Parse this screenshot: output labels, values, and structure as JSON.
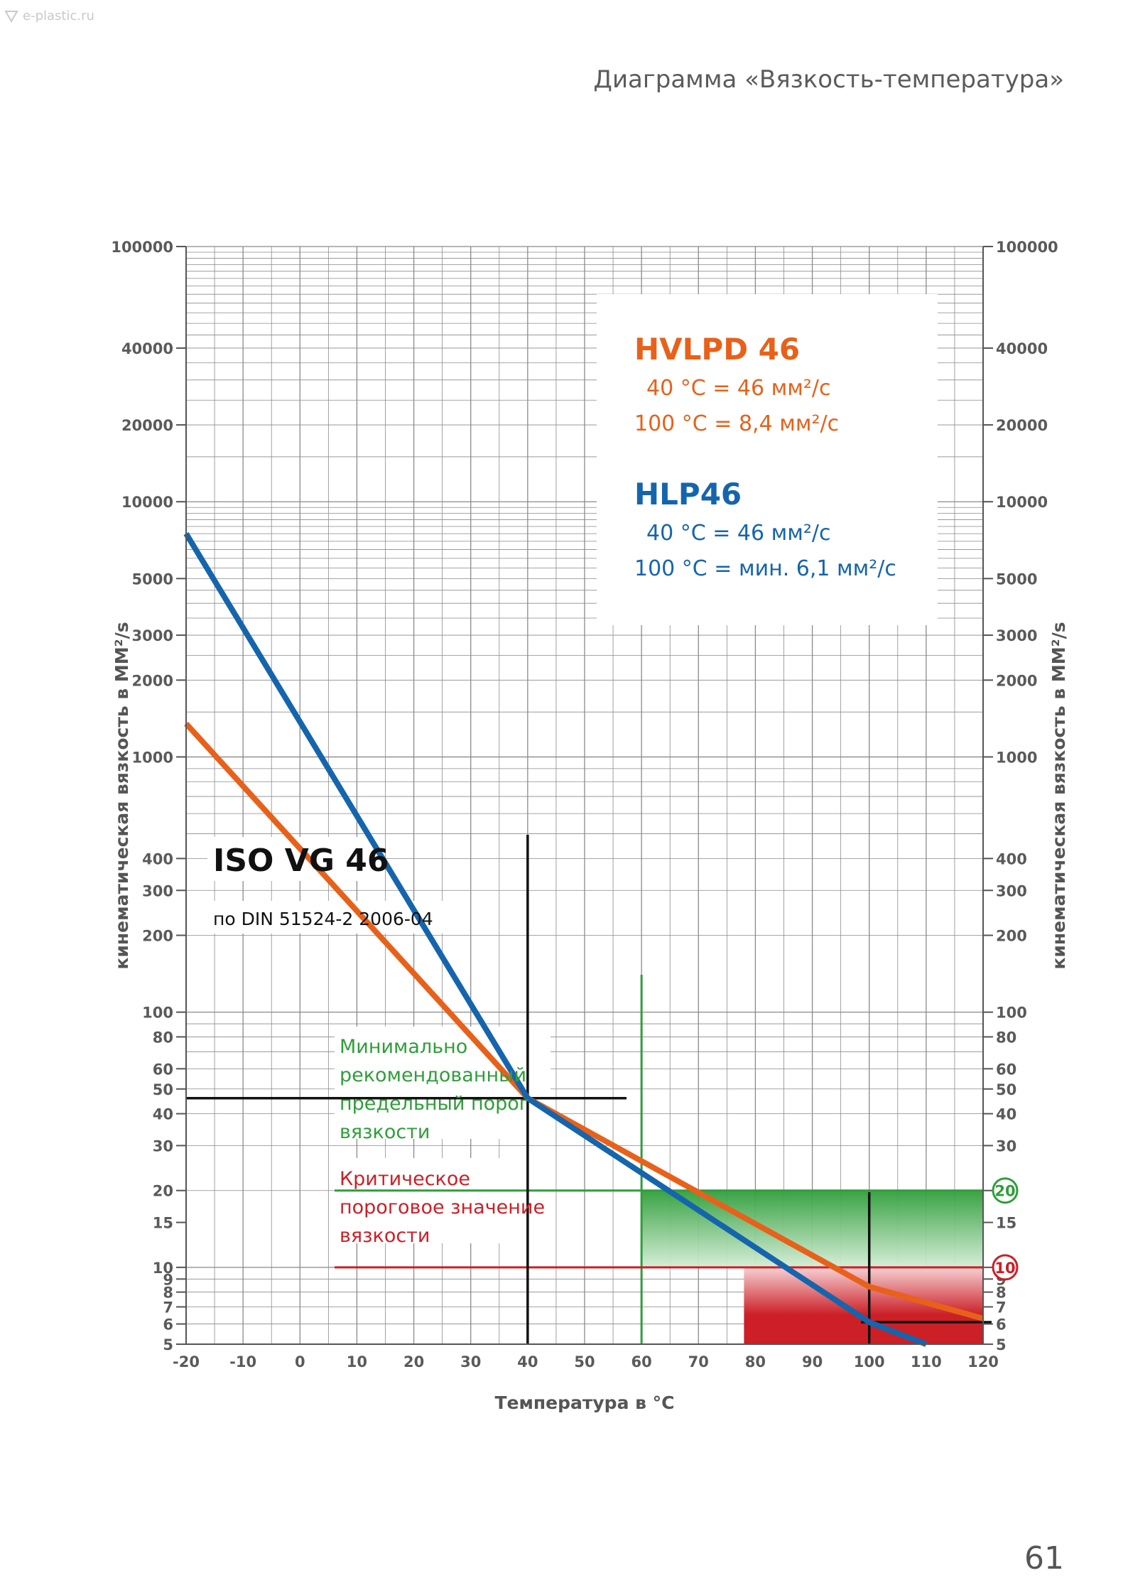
{
  "watermark": "e-plastic.ru",
  "page_header": "Диаграмма «Вязкость-температура»",
  "page_number": "61",
  "colors": {
    "hvlpd": "#e8611a",
    "hlp": "#1565ad",
    "green": "#2f9e3a",
    "red": "#cc1f26",
    "grid": "#8a8a8a",
    "black": "#111111"
  },
  "chart_data": {
    "type": "line",
    "title": "Диаграмма «Вязкость-температура»",
    "xlabel": "Температура в °C",
    "ylabel": "кинематическая вязкость в MM²/s",
    "xlim": [
      -20,
      120
    ],
    "ylim": [
      5,
      100000
    ],
    "yscale": "log",
    "x_ticks": [
      "-20",
      "-10",
      "0",
      "10",
      "20",
      "30",
      "40",
      "50",
      "60",
      "70",
      "80",
      "90",
      "100",
      "110",
      "120"
    ],
    "y_ticks": [
      {
        "v": 100000,
        "label": "100000"
      },
      {
        "v": 40000,
        "label": "40000"
      },
      {
        "v": 20000,
        "label": "20000"
      },
      {
        "v": 10000,
        "label": "10000"
      },
      {
        "v": 5000,
        "label": "5000"
      },
      {
        "v": 3000,
        "label": "3000"
      },
      {
        "v": 2000,
        "label": "2000"
      },
      {
        "v": 1000,
        "label": "1000"
      },
      {
        "v": 400,
        "label": "400"
      },
      {
        "v": 300,
        "label": "300"
      },
      {
        "v": 200,
        "label": "200"
      },
      {
        "v": 100,
        "label": "100"
      },
      {
        "v": 80,
        "label": "80"
      },
      {
        "v": 60,
        "label": "60"
      },
      {
        "v": 50,
        "label": "50"
      },
      {
        "v": 40,
        "label": "40"
      },
      {
        "v": 30,
        "label": "30"
      },
      {
        "v": 20,
        "label": "20"
      },
      {
        "v": 15,
        "label": "15"
      },
      {
        "v": 10,
        "label": "10"
      },
      {
        "v": 9,
        "label": "9"
      },
      {
        "v": 8,
        "label": "8"
      },
      {
        "v": 7,
        "label": "7"
      },
      {
        "v": 6,
        "label": "6"
      },
      {
        "v": 5,
        "label": "5"
      }
    ],
    "series": [
      {
        "name": "HVLPD 46",
        "color": "#e8611a",
        "points": [
          [
            -20,
            1350
          ],
          [
            40,
            46
          ],
          [
            100,
            8.4
          ],
          [
            120,
            6.3
          ]
        ]
      },
      {
        "name": "HLP46",
        "color": "#1565ad",
        "points": [
          [
            -20,
            7500
          ],
          [
            40,
            46
          ],
          [
            100,
            6.1
          ],
          [
            110,
            5
          ]
        ]
      }
    ],
    "thresholds": [
      {
        "value": 20,
        "label": "20",
        "color": "#2f9e3a",
        "from_x": 60
      },
      {
        "value": 10,
        "label": "10",
        "color": "#cc1f26",
        "from_x": 78
      }
    ],
    "legend": {
      "hvlpd_title": "HVLPD 46",
      "hvlpd_line1": "40 °C = 46 мм²/с",
      "hvlpd_line2": "100 °C = 8,4 мм²/с",
      "hlp_title": "HLP46",
      "hlp_line1": "40 °C = 46 мм²/с",
      "hlp_line2": "100 °C = мин. 6,1 мм²/с"
    },
    "annotations": {
      "iso_title": "ISO VG 46",
      "iso_sub": "по DIN 51524-2 2006-04",
      "green_lines": [
        "Минимально",
        "рекомендованный",
        "предельный порог",
        "вязкости"
      ],
      "red_lines": [
        "Критическое",
        "пороговое значение",
        "вязкости"
      ]
    }
  }
}
